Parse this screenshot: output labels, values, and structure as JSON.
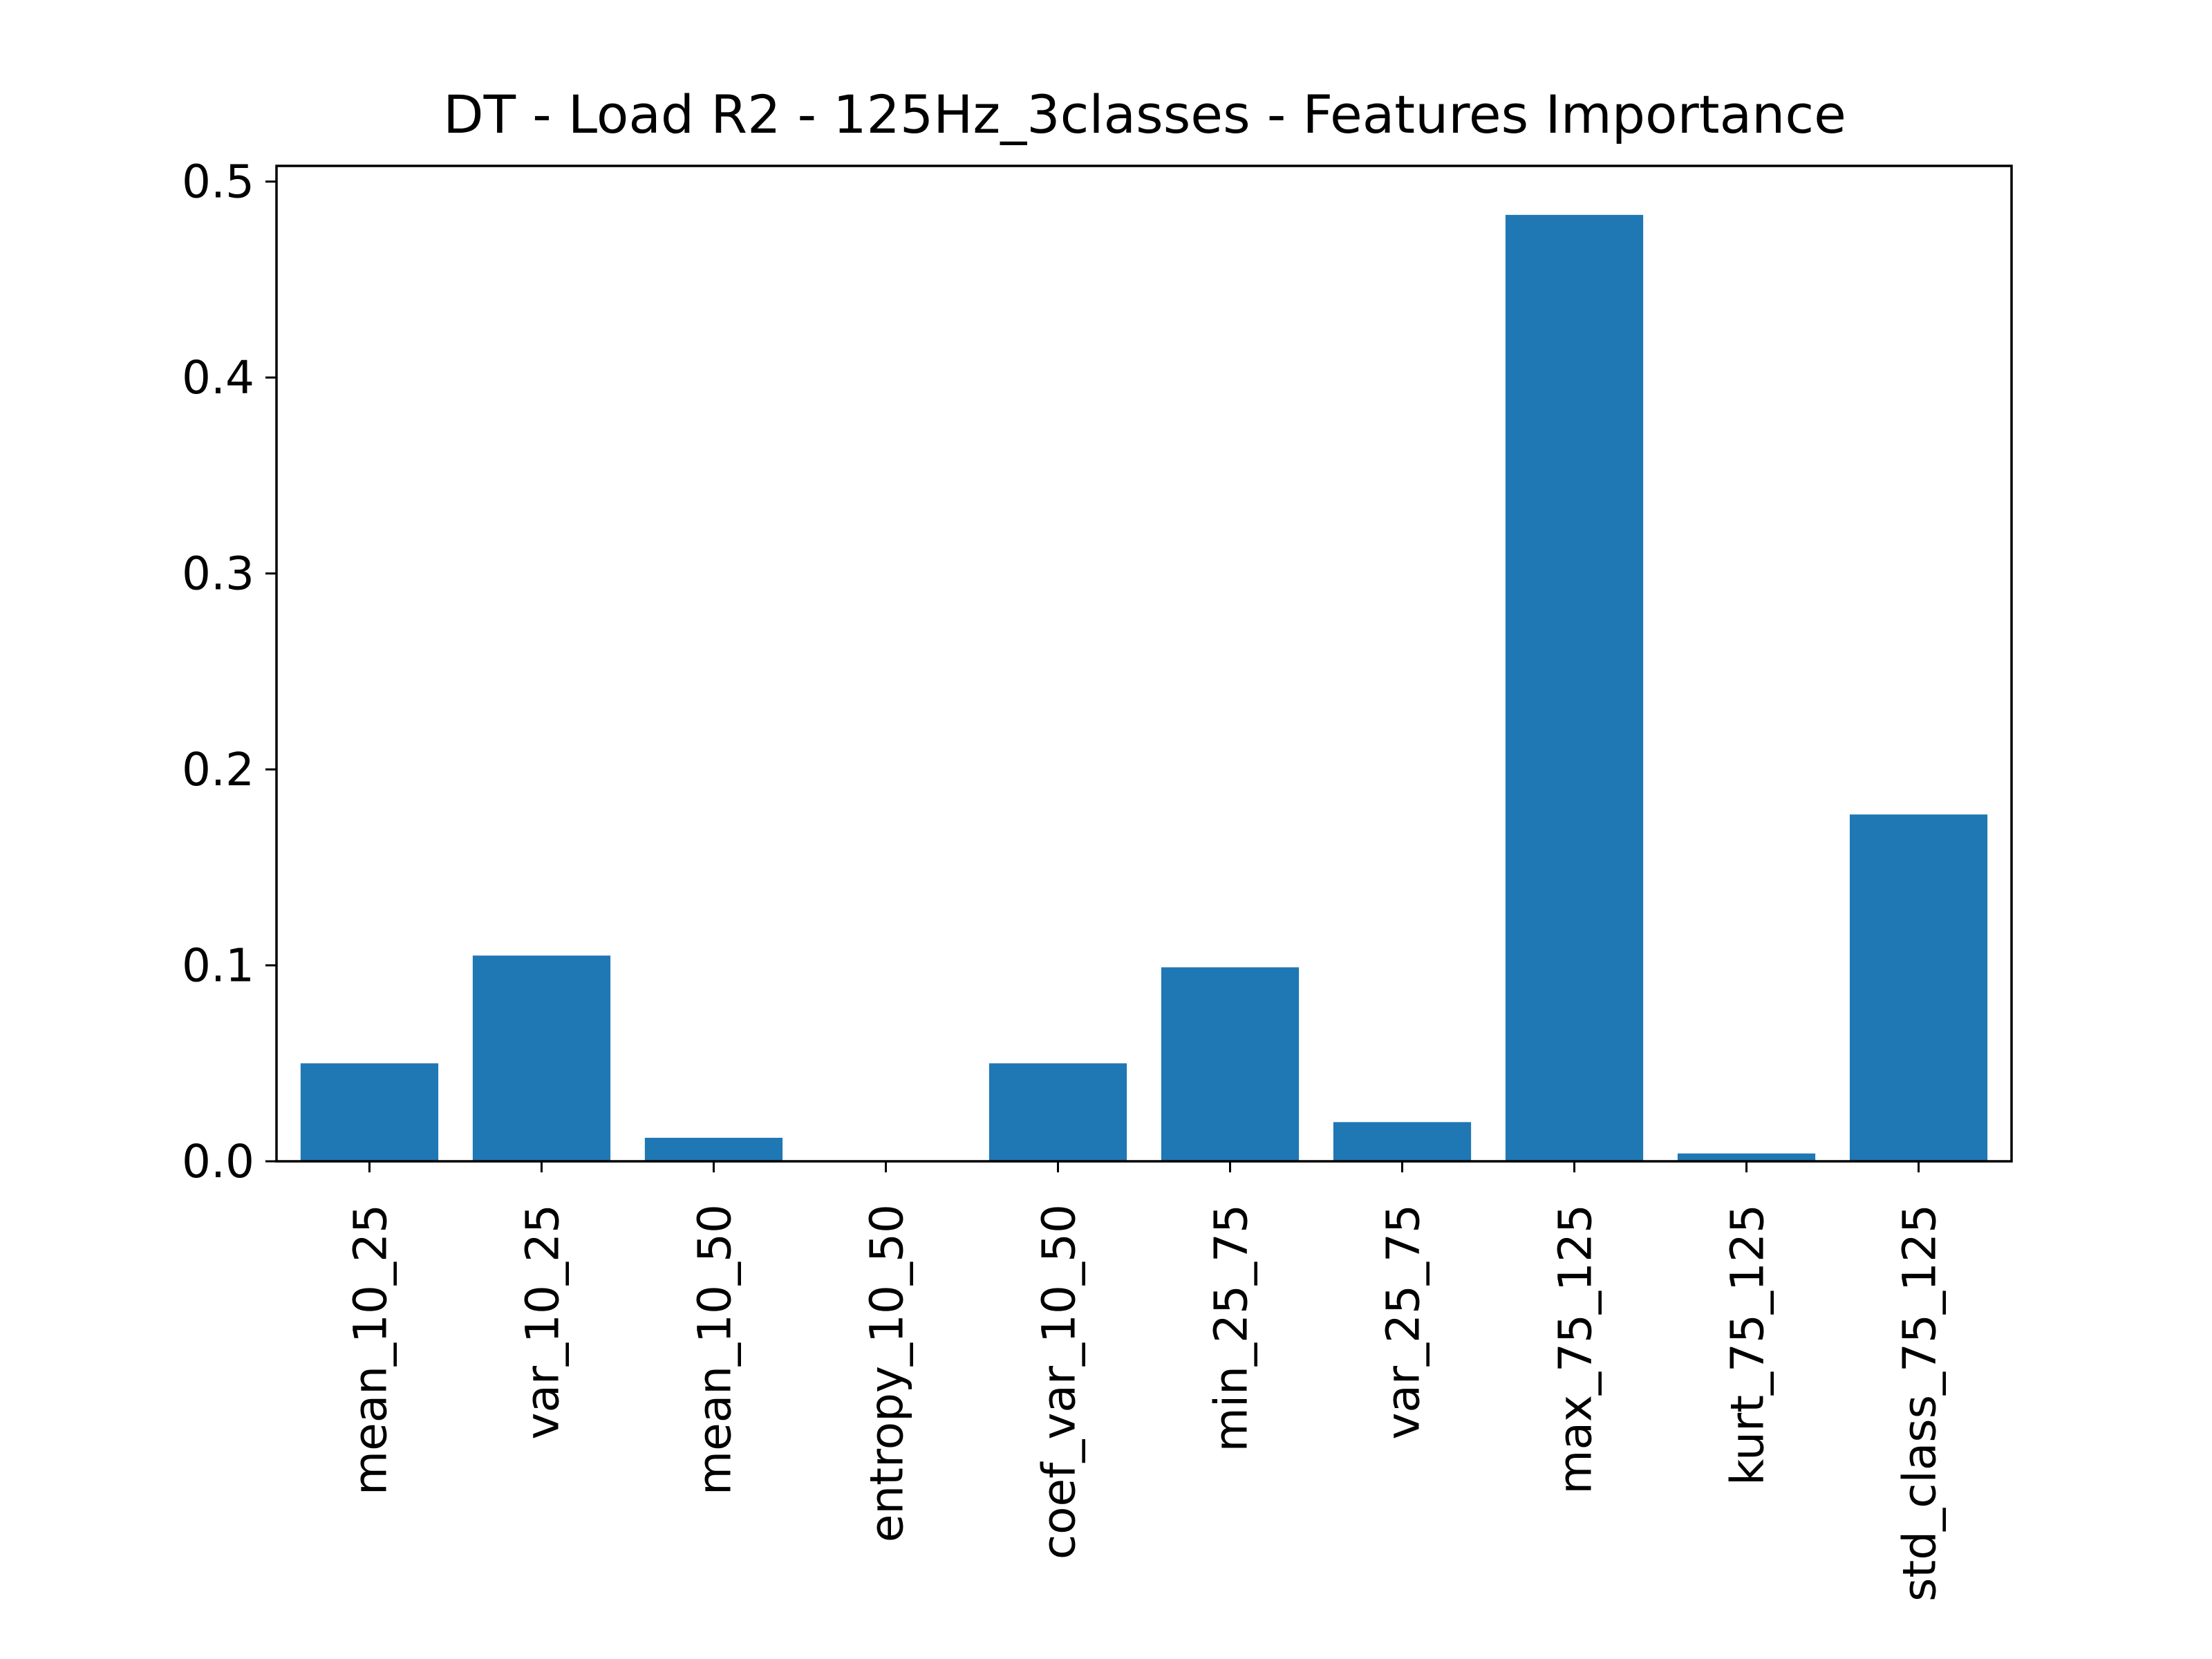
{
  "chart_data": {
    "type": "bar",
    "title": "DT - Load R2 - 125Hz_3classes - Features Importance",
    "xlabel": "",
    "ylabel": "",
    "categories": [
      "mean_10_25",
      "var_10_25",
      "mean_10_50",
      "entropy_10_50",
      "coef_var_10_50",
      "min_25_75",
      "var_25_75",
      "max_75_125",
      "kurt_75_125",
      "std_class_75_125"
    ],
    "values": [
      0.05,
      0.105,
      0.012,
      0.0,
      0.05,
      0.099,
      0.02,
      0.483,
      0.004,
      0.177
    ],
    "ylim": [
      0,
      0.508
    ],
    "yticks": [
      0.0,
      0.1,
      0.2,
      0.3,
      0.4,
      0.5
    ],
    "ytick_labels": [
      "0.0",
      "0.1",
      "0.2",
      "0.3",
      "0.4",
      "0.5"
    ],
    "grid": false,
    "bar_color": "#1f77b4"
  }
}
